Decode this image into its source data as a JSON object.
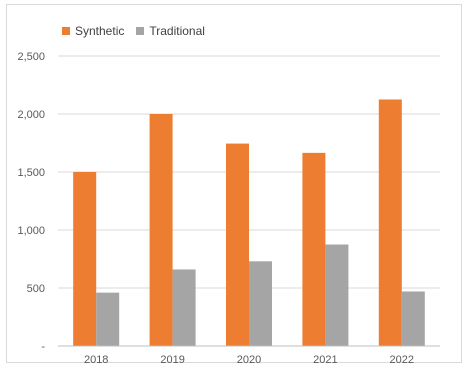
{
  "chart_data": {
    "type": "bar",
    "title": "",
    "xlabel": "",
    "ylabel": "",
    "categories": [
      "2018",
      "2019",
      "2020",
      "2021",
      "2022"
    ],
    "series": [
      {
        "name": "Synthetic",
        "color": "#ed7d31",
        "values": [
          1500,
          2000,
          1745,
          1665,
          2125
        ]
      },
      {
        "name": "Traditional",
        "color": "#a5a5a5",
        "values": [
          460,
          660,
          730,
          875,
          470
        ]
      }
    ],
    "ylim": [
      0,
      2500
    ],
    "yticks": [
      0,
      500,
      1000,
      1500,
      2000,
      2500
    ],
    "ytick_labels": [
      "-",
      "500",
      "1,000",
      "1,500",
      "2,000",
      "2,500"
    ],
    "grid": true,
    "legend_position": "top-left"
  }
}
